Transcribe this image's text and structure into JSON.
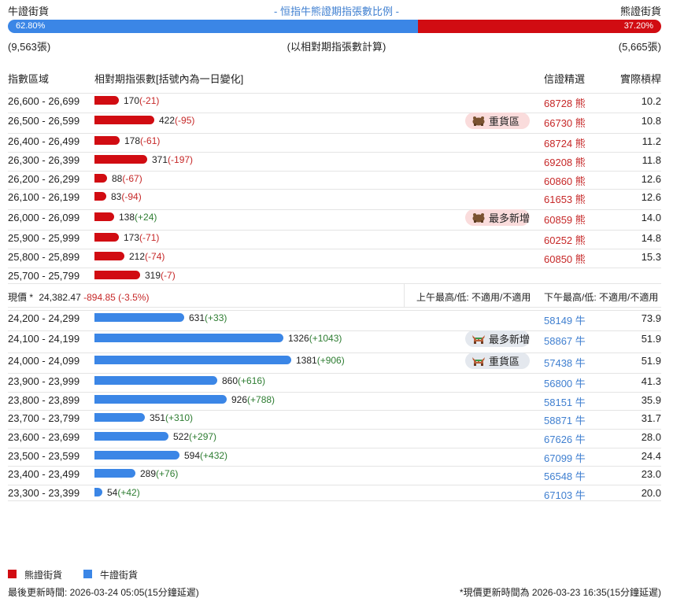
{
  "header": {
    "bull_title": "牛證街貨",
    "center_title": "- 恒指牛熊證期指張數比例 -",
    "bear_title": "熊證街貨",
    "bull_pct": "62.80%",
    "bear_pct": "37.20%",
    "bull_ratio": 0.628,
    "bull_count": "(9,563張)",
    "note": "(以相對期指張數計算)",
    "bear_count": "(5,665張)"
  },
  "columns": {
    "range": "指數區域",
    "contracts": "相對期指張數[括號內為一日變化]",
    "pick": "信證精選",
    "leverage": "實際槓桿"
  },
  "bear_rows": [
    {
      "range": "26,600 - 26,699",
      "count": "170",
      "change": "(-21)",
      "value": 170,
      "code": "68728",
      "type": "熊",
      "leverage": "10.2",
      "badge": ""
    },
    {
      "range": "26,500 - 26,599",
      "count": "422",
      "change": "(-95)",
      "value": 422,
      "code": "66730",
      "type": "熊",
      "leverage": "10.8",
      "badge": "重貨區"
    },
    {
      "range": "26,400 - 26,499",
      "count": "178",
      "change": "(-61)",
      "value": 178,
      "code": "68724",
      "type": "熊",
      "leverage": "11.2",
      "badge": ""
    },
    {
      "range": "26,300 - 26,399",
      "count": "371",
      "change": "(-197)",
      "value": 371,
      "code": "69208",
      "type": "熊",
      "leverage": "11.8",
      "badge": ""
    },
    {
      "range": "26,200 - 26,299",
      "count": "88",
      "change": "(-67)",
      "value": 88,
      "code": "60860",
      "type": "熊",
      "leverage": "12.6",
      "badge": ""
    },
    {
      "range": "26,100 - 26,199",
      "count": "83",
      "change": "(-94)",
      "value": 83,
      "code": "61653",
      "type": "熊",
      "leverage": "12.6",
      "badge": ""
    },
    {
      "range": "26,000 - 26,099",
      "count": "138",
      "change": "(+24)",
      "value": 138,
      "code": "60859",
      "type": "熊",
      "leverage": "14.0",
      "badge": "最多新增"
    },
    {
      "range": "25,900 - 25,999",
      "count": "173",
      "change": "(-71)",
      "value": 173,
      "code": "60252",
      "type": "熊",
      "leverage": "14.8",
      "badge": ""
    },
    {
      "range": "25,800 - 25,899",
      "count": "212",
      "change": "(-74)",
      "value": 212,
      "code": "60850",
      "type": "熊",
      "leverage": "15.3",
      "badge": ""
    },
    {
      "range": "25,700 - 25,799",
      "count": "319",
      "change": "(-7)",
      "value": 319,
      "code": "",
      "type": "",
      "leverage": "",
      "badge": ""
    }
  ],
  "current": {
    "label": "現價 *",
    "price": "24,382.47",
    "change": "-894.85 (-3.5%)",
    "am": "上午最高/低: 不適用/不適用",
    "pm": "下午最高/低: 不適用/不適用"
  },
  "bull_rows": [
    {
      "range": "24,200 - 24,299",
      "count": "631",
      "change": "(+33)",
      "value": 631,
      "code": "58149",
      "type": "牛",
      "leverage": "73.9",
      "badge": ""
    },
    {
      "range": "24,100 - 24,199",
      "count": "1326",
      "change": "(+1043)",
      "value": 1326,
      "code": "58867",
      "type": "牛",
      "leverage": "51.9",
      "badge": "最多新增"
    },
    {
      "range": "24,000 - 24,099",
      "count": "1381",
      "change": "(+906)",
      "value": 1381,
      "code": "57438",
      "type": "牛",
      "leverage": "51.9",
      "badge": "重貨區"
    },
    {
      "range": "23,900 - 23,999",
      "count": "860",
      "change": "(+616)",
      "value": 860,
      "code": "56800",
      "type": "牛",
      "leverage": "41.3",
      "badge": ""
    },
    {
      "range": "23,800 - 23,899",
      "count": "926",
      "change": "(+788)",
      "value": 926,
      "code": "58151",
      "type": "牛",
      "leverage": "35.9",
      "badge": ""
    },
    {
      "range": "23,700 - 23,799",
      "count": "351",
      "change": "(+310)",
      "value": 351,
      "code": "58871",
      "type": "牛",
      "leverage": "31.7",
      "badge": ""
    },
    {
      "range": "23,600 - 23,699",
      "count": "522",
      "change": "(+297)",
      "value": 522,
      "code": "67626",
      "type": "牛",
      "leverage": "28.0",
      "badge": ""
    },
    {
      "range": "23,500 - 23,599",
      "count": "594",
      "change": "(+432)",
      "value": 594,
      "code": "67099",
      "type": "牛",
      "leverage": "24.4",
      "badge": ""
    },
    {
      "range": "23,400 - 23,499",
      "count": "289",
      "change": "(+76)",
      "value": 289,
      "code": "56548",
      "type": "牛",
      "leverage": "23.0",
      "badge": ""
    },
    {
      "range": "23,300 - 23,399",
      "count": "54",
      "change": "(+42)",
      "value": 54,
      "code": "67103",
      "type": "牛",
      "leverage": "20.0",
      "badge": ""
    }
  ],
  "legend": {
    "bear": "熊證街貨",
    "bull": "牛證街貨",
    "bear_color": "#d10c12",
    "bull_color": "#3b86e6"
  },
  "footer": {
    "updated": "最後更新時間: 2026-03-24 05:05(15分鐘延遲)",
    "price_updated": "*現價更新時間為 2026-03-23 16:35(15分鐘延遲)"
  }
}
